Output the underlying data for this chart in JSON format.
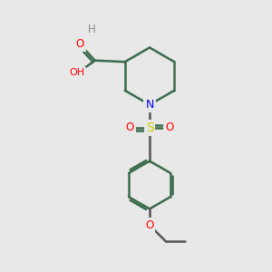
{
  "background_color": "#e8e8e8",
  "bond_color": "#3a6b4a",
  "atom_colors": {
    "O": "#ff0000",
    "N": "#0000ee",
    "S": "#cccc00",
    "H": "#808080"
  },
  "lw": 1.8,
  "xlim": [
    0,
    10
  ],
  "ylim": [
    0,
    10
  ]
}
